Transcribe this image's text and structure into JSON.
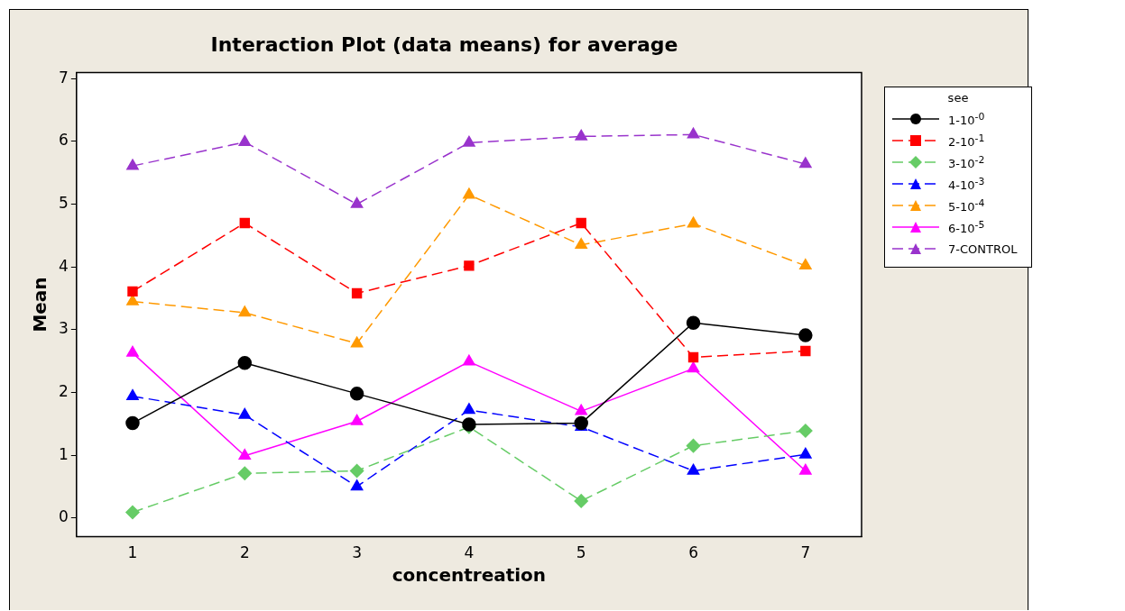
{
  "chart_data": {
    "type": "line",
    "title": "Interaction Plot (data means) for average",
    "xlabel": "concentreation",
    "ylabel": "Mean",
    "legend_title": "see",
    "legend": "right",
    "categories": [
      "1",
      "2",
      "3",
      "4",
      "5",
      "6",
      "7"
    ],
    "ylim": [
      -0.3,
      7.1
    ],
    "yticks": [
      0,
      1,
      2,
      3,
      4,
      5,
      6,
      7
    ],
    "grid": false,
    "series": [
      {
        "name": "1-10$^{-0}$",
        "color": "#000000",
        "marker": "circle",
        "line_style": "solid",
        "values": [
          1.51,
          2.47,
          1.98,
          1.49,
          1.51,
          3.11,
          2.91
        ]
      },
      {
        "name": "2-10$^{-1}$",
        "color": "#ff0000",
        "marker": "square",
        "line_style": "dashed",
        "values": [
          3.61,
          4.7,
          3.58,
          4.02,
          4.7,
          2.56,
          2.66
        ]
      },
      {
        "name": "3-10$^{-2}$",
        "color": "#66cc66",
        "marker": "diamond",
        "line_style": "dashed",
        "values": [
          0.09,
          0.71,
          0.75,
          1.45,
          0.27,
          1.15,
          1.39
        ]
      },
      {
        "name": "4-10$^{-3}$",
        "color": "#0000ff",
        "marker": "triangle",
        "line_style": "dashed",
        "values": [
          1.94,
          1.64,
          0.5,
          1.72,
          1.45,
          0.75,
          1.01
        ]
      },
      {
        "name": "5-10$^{-4}$",
        "color": "#ff9900",
        "marker": "triangle",
        "line_style": "dashed",
        "values": [
          3.45,
          3.27,
          2.78,
          5.15,
          4.35,
          4.69,
          4.02
        ]
      },
      {
        "name": "6-10$^{-5}$",
        "color": "#ff00ff",
        "marker": "triangle",
        "line_style": "solid",
        "values": [
          2.63,
          0.99,
          1.54,
          2.49,
          1.7,
          2.38,
          0.75
        ]
      },
      {
        "name": "7-CONTROL",
        "color": "#9933cc",
        "marker": "triangle",
        "line_style": "dashed",
        "values": [
          5.61,
          5.99,
          5.0,
          5.98,
          6.08,
          6.11,
          5.64
        ]
      }
    ]
  }
}
